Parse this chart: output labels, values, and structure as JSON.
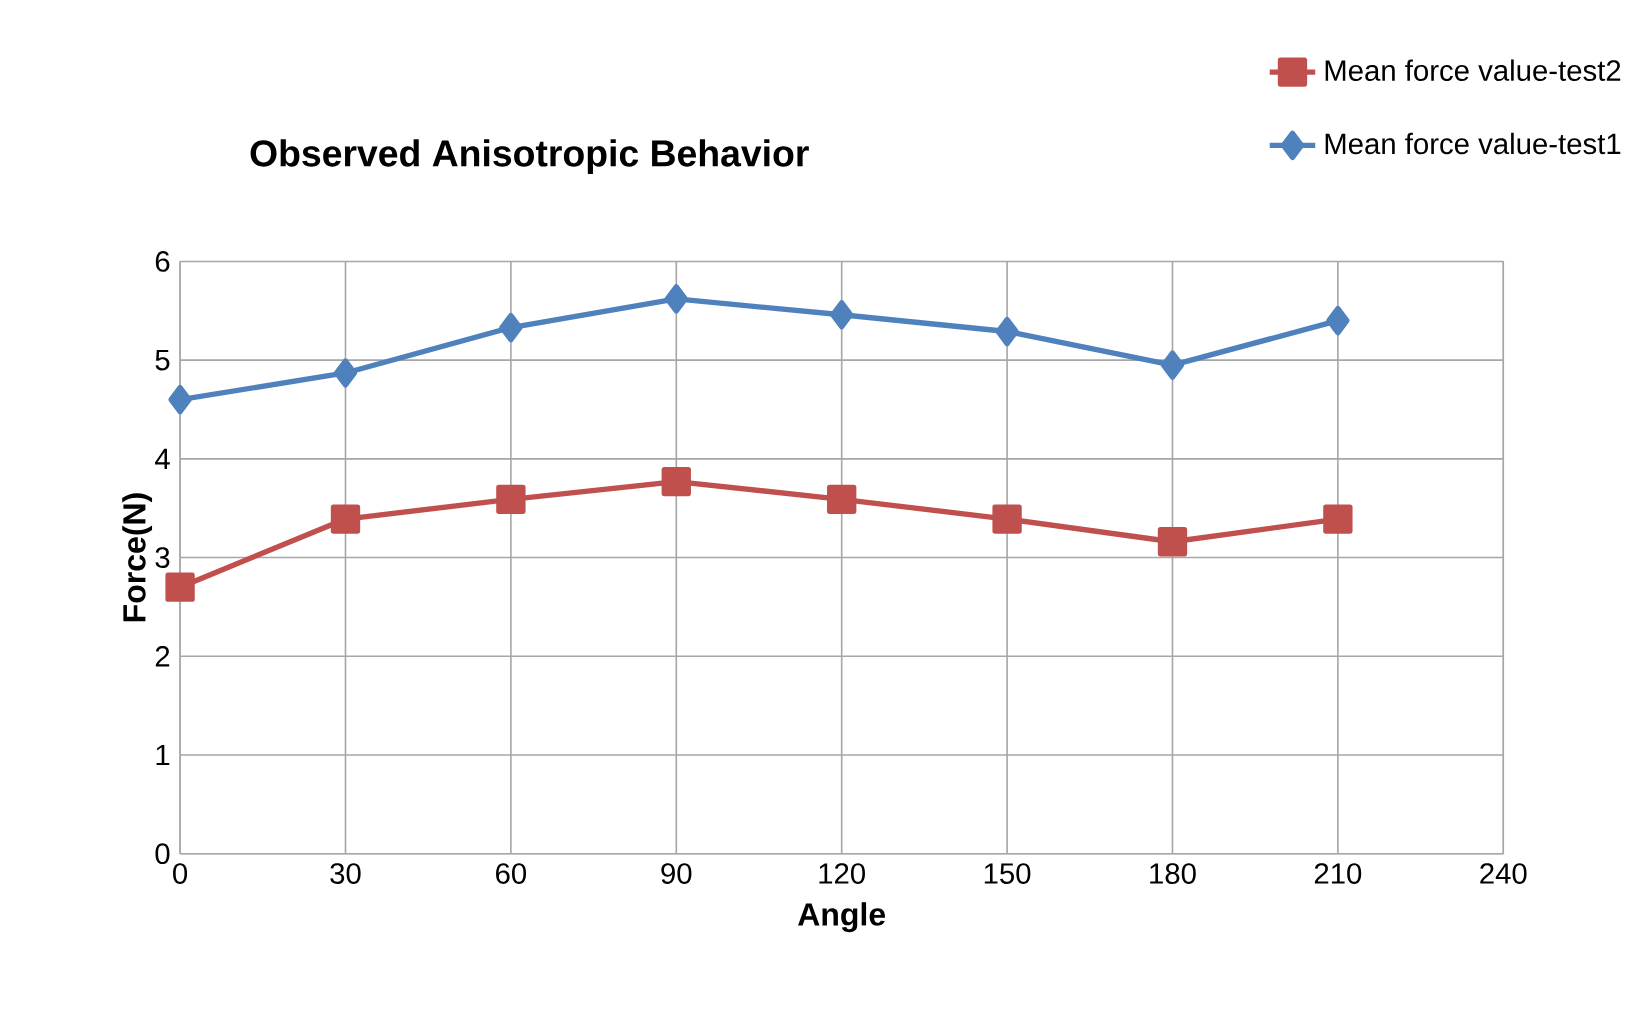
{
  "chart_data": {
    "type": "line",
    "title": "Observed Anisotropic Behavior",
    "xlabel": "Angle",
    "ylabel": "Force(N)",
    "x": [
      0,
      30,
      60,
      90,
      120,
      150,
      180,
      210
    ],
    "series": [
      {
        "name": "Mean force value-test2",
        "color": "#c0504d",
        "marker": "square",
        "values": [
          2.7,
          3.39,
          3.59,
          3.77,
          3.59,
          3.39,
          3.16,
          3.39
        ]
      },
      {
        "name": "Mean force value-test1",
        "color": "#4f81bd",
        "marker": "diamond",
        "values": [
          4.6,
          4.87,
          5.33,
          5.62,
          5.46,
          5.29,
          4.95,
          5.4
        ]
      }
    ],
    "xlim": [
      0,
      240
    ],
    "xticks": [
      0,
      30,
      60,
      90,
      120,
      150,
      180,
      210,
      240
    ],
    "ylim": [
      0,
      6
    ],
    "yticks": [
      0,
      1,
      2,
      3,
      4,
      5,
      6
    ],
    "grid": true,
    "legend": "top right",
    "line_style": "solid"
  }
}
